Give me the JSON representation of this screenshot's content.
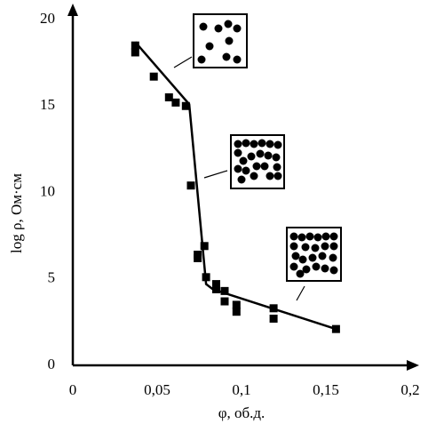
{
  "chart_data": {
    "type": "scatter",
    "xlabel": "φ, об.д.",
    "ylabel": "log ρ, Ом·см",
    "xlim": [
      0,
      0.2
    ],
    "ylim": [
      0,
      20
    ],
    "xticks": [
      {
        "value": 0,
        "label": "0"
      },
      {
        "value": 0.05,
        "label": "0,05"
      },
      {
        "value": 0.1,
        "label": "0,1"
      },
      {
        "value": 0.15,
        "label": "0,15"
      },
      {
        "value": 0.2,
        "label": "0,2"
      }
    ],
    "yticks": [
      0,
      5,
      10,
      15,
      20
    ],
    "series": [
      {
        "type": "scatter",
        "color": "#000000",
        "x": [
          0.037,
          0.037,
          0.048,
          0.057,
          0.061,
          0.067,
          0.07,
          0.074,
          0.074,
          0.078,
          0.079,
          0.085,
          0.085,
          0.09,
          0.09,
          0.097,
          0.097,
          0.119,
          0.119,
          0.156
        ],
        "values": [
          18.5,
          18.1,
          16.7,
          15.5,
          15.2,
          15.0,
          10.4,
          6.4,
          6.2,
          6.9,
          5.1,
          4.7,
          4.4,
          4.3,
          3.7,
          3.5,
          3.1,
          3.3,
          2.7,
          2.1
        ]
      },
      {
        "type": "line",
        "color": "#000000",
        "x": [
          0.037,
          0.069,
          0.079,
          0.083,
          0.156
        ],
        "values": [
          18.7,
          15.1,
          4.7,
          4.4,
          2.1
        ]
      }
    ]
  }
}
